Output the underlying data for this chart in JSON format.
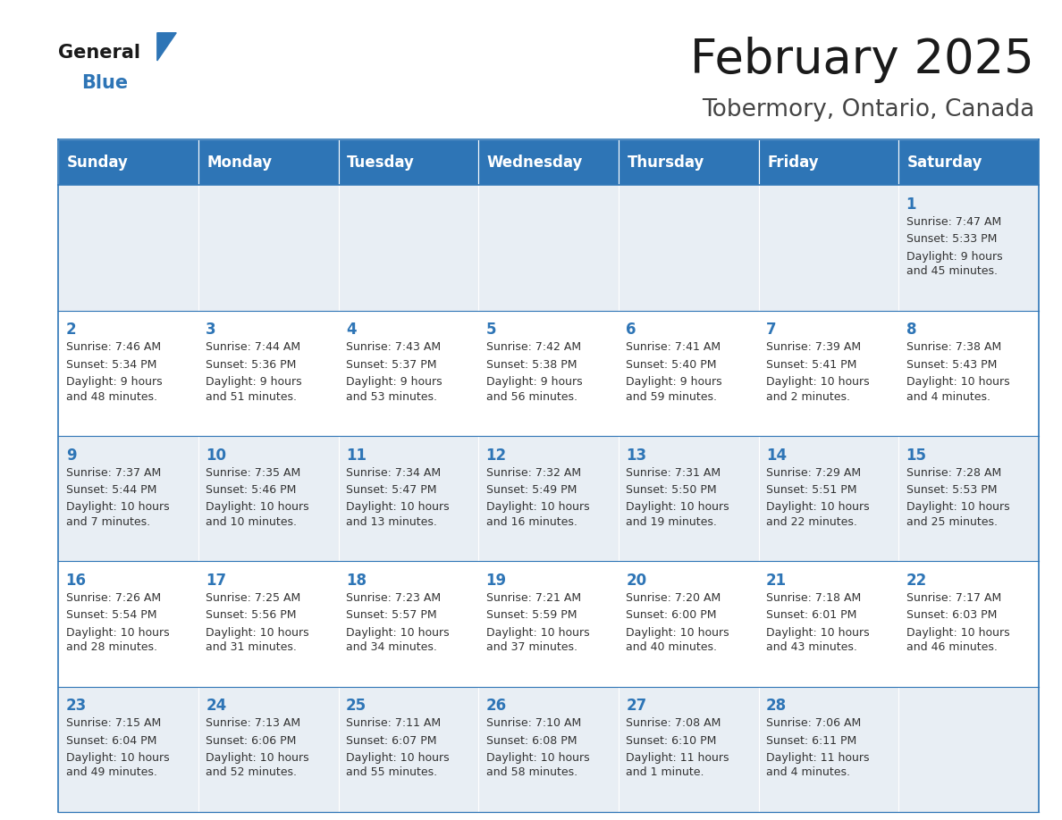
{
  "title": "February 2025",
  "subtitle": "Tobermory, Ontario, Canada",
  "header_color": "#2e75b6",
  "header_text_color": "#ffffff",
  "cell_bg_light": "#e8eef4",
  "cell_bg_white": "#ffffff",
  "line_color": "#2e75b6",
  "day_number_color": "#2e75b6",
  "text_color": "#333333",
  "days_of_week": [
    "Sunday",
    "Monday",
    "Tuesday",
    "Wednesday",
    "Thursday",
    "Friday",
    "Saturday"
  ],
  "weeks": [
    [
      {
        "day": "",
        "sunrise": "",
        "sunset": "",
        "daylight": ""
      },
      {
        "day": "",
        "sunrise": "",
        "sunset": "",
        "daylight": ""
      },
      {
        "day": "",
        "sunrise": "",
        "sunset": "",
        "daylight": ""
      },
      {
        "day": "",
        "sunrise": "",
        "sunset": "",
        "daylight": ""
      },
      {
        "day": "",
        "sunrise": "",
        "sunset": "",
        "daylight": ""
      },
      {
        "day": "",
        "sunrise": "",
        "sunset": "",
        "daylight": ""
      },
      {
        "day": "1",
        "sunrise": "Sunrise: 7:47 AM",
        "sunset": "Sunset: 5:33 PM",
        "daylight": "Daylight: 9 hours\nand 45 minutes."
      }
    ],
    [
      {
        "day": "2",
        "sunrise": "Sunrise: 7:46 AM",
        "sunset": "Sunset: 5:34 PM",
        "daylight": "Daylight: 9 hours\nand 48 minutes."
      },
      {
        "day": "3",
        "sunrise": "Sunrise: 7:44 AM",
        "sunset": "Sunset: 5:36 PM",
        "daylight": "Daylight: 9 hours\nand 51 minutes."
      },
      {
        "day": "4",
        "sunrise": "Sunrise: 7:43 AM",
        "sunset": "Sunset: 5:37 PM",
        "daylight": "Daylight: 9 hours\nand 53 minutes."
      },
      {
        "day": "5",
        "sunrise": "Sunrise: 7:42 AM",
        "sunset": "Sunset: 5:38 PM",
        "daylight": "Daylight: 9 hours\nand 56 minutes."
      },
      {
        "day": "6",
        "sunrise": "Sunrise: 7:41 AM",
        "sunset": "Sunset: 5:40 PM",
        "daylight": "Daylight: 9 hours\nand 59 minutes."
      },
      {
        "day": "7",
        "sunrise": "Sunrise: 7:39 AM",
        "sunset": "Sunset: 5:41 PM",
        "daylight": "Daylight: 10 hours\nand 2 minutes."
      },
      {
        "day": "8",
        "sunrise": "Sunrise: 7:38 AM",
        "sunset": "Sunset: 5:43 PM",
        "daylight": "Daylight: 10 hours\nand 4 minutes."
      }
    ],
    [
      {
        "day": "9",
        "sunrise": "Sunrise: 7:37 AM",
        "sunset": "Sunset: 5:44 PM",
        "daylight": "Daylight: 10 hours\nand 7 minutes."
      },
      {
        "day": "10",
        "sunrise": "Sunrise: 7:35 AM",
        "sunset": "Sunset: 5:46 PM",
        "daylight": "Daylight: 10 hours\nand 10 minutes."
      },
      {
        "day": "11",
        "sunrise": "Sunrise: 7:34 AM",
        "sunset": "Sunset: 5:47 PM",
        "daylight": "Daylight: 10 hours\nand 13 minutes."
      },
      {
        "day": "12",
        "sunrise": "Sunrise: 7:32 AM",
        "sunset": "Sunset: 5:49 PM",
        "daylight": "Daylight: 10 hours\nand 16 minutes."
      },
      {
        "day": "13",
        "sunrise": "Sunrise: 7:31 AM",
        "sunset": "Sunset: 5:50 PM",
        "daylight": "Daylight: 10 hours\nand 19 minutes."
      },
      {
        "day": "14",
        "sunrise": "Sunrise: 7:29 AM",
        "sunset": "Sunset: 5:51 PM",
        "daylight": "Daylight: 10 hours\nand 22 minutes."
      },
      {
        "day": "15",
        "sunrise": "Sunrise: 7:28 AM",
        "sunset": "Sunset: 5:53 PM",
        "daylight": "Daylight: 10 hours\nand 25 minutes."
      }
    ],
    [
      {
        "day": "16",
        "sunrise": "Sunrise: 7:26 AM",
        "sunset": "Sunset: 5:54 PM",
        "daylight": "Daylight: 10 hours\nand 28 minutes."
      },
      {
        "day": "17",
        "sunrise": "Sunrise: 7:25 AM",
        "sunset": "Sunset: 5:56 PM",
        "daylight": "Daylight: 10 hours\nand 31 minutes."
      },
      {
        "day": "18",
        "sunrise": "Sunrise: 7:23 AM",
        "sunset": "Sunset: 5:57 PM",
        "daylight": "Daylight: 10 hours\nand 34 minutes."
      },
      {
        "day": "19",
        "sunrise": "Sunrise: 7:21 AM",
        "sunset": "Sunset: 5:59 PM",
        "daylight": "Daylight: 10 hours\nand 37 minutes."
      },
      {
        "day": "20",
        "sunrise": "Sunrise: 7:20 AM",
        "sunset": "Sunset: 6:00 PM",
        "daylight": "Daylight: 10 hours\nand 40 minutes."
      },
      {
        "day": "21",
        "sunrise": "Sunrise: 7:18 AM",
        "sunset": "Sunset: 6:01 PM",
        "daylight": "Daylight: 10 hours\nand 43 minutes."
      },
      {
        "day": "22",
        "sunrise": "Sunrise: 7:17 AM",
        "sunset": "Sunset: 6:03 PM",
        "daylight": "Daylight: 10 hours\nand 46 minutes."
      }
    ],
    [
      {
        "day": "23",
        "sunrise": "Sunrise: 7:15 AM",
        "sunset": "Sunset: 6:04 PM",
        "daylight": "Daylight: 10 hours\nand 49 minutes."
      },
      {
        "day": "24",
        "sunrise": "Sunrise: 7:13 AM",
        "sunset": "Sunset: 6:06 PM",
        "daylight": "Daylight: 10 hours\nand 52 minutes."
      },
      {
        "day": "25",
        "sunrise": "Sunrise: 7:11 AM",
        "sunset": "Sunset: 6:07 PM",
        "daylight": "Daylight: 10 hours\nand 55 minutes."
      },
      {
        "day": "26",
        "sunrise": "Sunrise: 7:10 AM",
        "sunset": "Sunset: 6:08 PM",
        "daylight": "Daylight: 10 hours\nand 58 minutes."
      },
      {
        "day": "27",
        "sunrise": "Sunrise: 7:08 AM",
        "sunset": "Sunset: 6:10 PM",
        "daylight": "Daylight: 11 hours\nand 1 minute."
      },
      {
        "day": "28",
        "sunrise": "Sunrise: 7:06 AM",
        "sunset": "Sunset: 6:11 PM",
        "daylight": "Daylight: 11 hours\nand 4 minutes."
      },
      {
        "day": "",
        "sunrise": "",
        "sunset": "",
        "daylight": ""
      }
    ]
  ],
  "logo_general_color": "#1a1a1a",
  "logo_blue_color": "#2e75b6",
  "title_fontsize": 38,
  "subtitle_fontsize": 19,
  "header_fontsize": 12,
  "day_num_fontsize": 12,
  "cell_text_fontsize": 9
}
